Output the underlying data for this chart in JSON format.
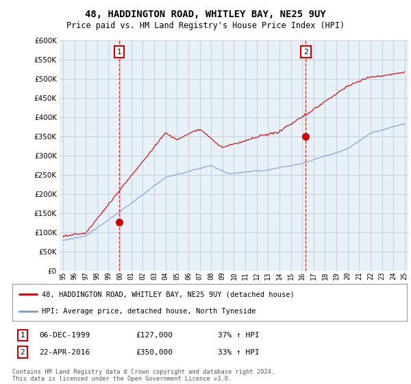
{
  "title": "48, HADDINGTON ROAD, WHITLEY BAY, NE25 9UY",
  "subtitle": "Price paid vs. HM Land Registry's House Price Index (HPI)",
  "sale1_date": 1999.92,
  "sale1_price": 127000,
  "sale1_label": "1",
  "sale1_text": "06-DEC-1999",
  "sale1_amount": "£127,000",
  "sale1_hpi": "37% ↑ HPI",
  "sale2_date": 2016.31,
  "sale2_price": 350000,
  "sale2_label": "2",
  "sale2_text": "22-APR-2016",
  "sale2_amount": "£350,000",
  "sale2_hpi": "33% ↑ HPI",
  "legend_red": "48, HADDINGTON ROAD, WHITLEY BAY, NE25 9UY (detached house)",
  "legend_blue": "HPI: Average price, detached house, North Tyneside",
  "footer": "Contains HM Land Registry data © Crown copyright and database right 2024.\nThis data is licensed under the Open Government Licence v3.0.",
  "red_color": "#cc0000",
  "blue_color": "#7799cc",
  "chart_bg": "#e8f0f8",
  "dashed_color": "#cc0000",
  "background_color": "#ffffff",
  "grid_color": "#bbccdd",
  "ylim": [
    0,
    600000
  ],
  "xlim": [
    1994.7,
    2025.3
  ],
  "yticks": [
    0,
    50000,
    100000,
    150000,
    200000,
    250000,
    300000,
    350000,
    400000,
    450000,
    500000,
    550000,
    600000
  ]
}
